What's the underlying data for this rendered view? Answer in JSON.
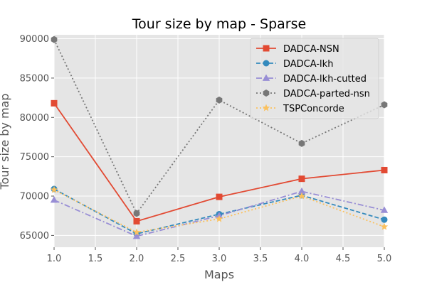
{
  "chart_data": {
    "type": "line",
    "title": "Tour size by map - Sparse",
    "xlabel": "Maps",
    "ylabel": "Tour size by map",
    "xlim": [
      1.0,
      5.0
    ],
    "ylim": [
      63500,
      90500
    ],
    "x": [
      1,
      2,
      3,
      4,
      5
    ],
    "xticks": [
      "1.0",
      "1.5",
      "2.0",
      "2.5",
      "3.0",
      "3.5",
      "4.0",
      "4.5",
      "5.0"
    ],
    "yticks": [
      "65000",
      "70000",
      "75000",
      "80000",
      "85000",
      "90000"
    ],
    "grid": true,
    "legend_position": "top-right",
    "background": "#e5e5e5",
    "series": [
      {
        "name": "DADCA-NSN",
        "color": "#e24a33",
        "marker": "square",
        "linestyle": "solid",
        "values": [
          81800,
          66800,
          69900,
          72200,
          73300
        ]
      },
      {
        "name": "DADCA-lkh",
        "color": "#348abd",
        "marker": "circle",
        "linestyle": "dashed",
        "values": [
          70900,
          65200,
          67700,
          70100,
          67000
        ]
      },
      {
        "name": "DADCA-lkh-cutted",
        "color": "#988ed5",
        "marker": "triangle",
        "linestyle": "dashdot",
        "values": [
          69500,
          64900,
          67500,
          70600,
          68200
        ]
      },
      {
        "name": "DADCA-parted-nsn",
        "color": "#777777",
        "marker": "hexagon",
        "linestyle": "dotted",
        "values": [
          89900,
          67800,
          82200,
          76700,
          81600
        ]
      },
      {
        "name": "TSPConcorde",
        "color": "#fbc15e",
        "marker": "star",
        "linestyle": "dotted",
        "values": [
          70800,
          65400,
          67100,
          70000,
          66100
        ]
      }
    ]
  }
}
